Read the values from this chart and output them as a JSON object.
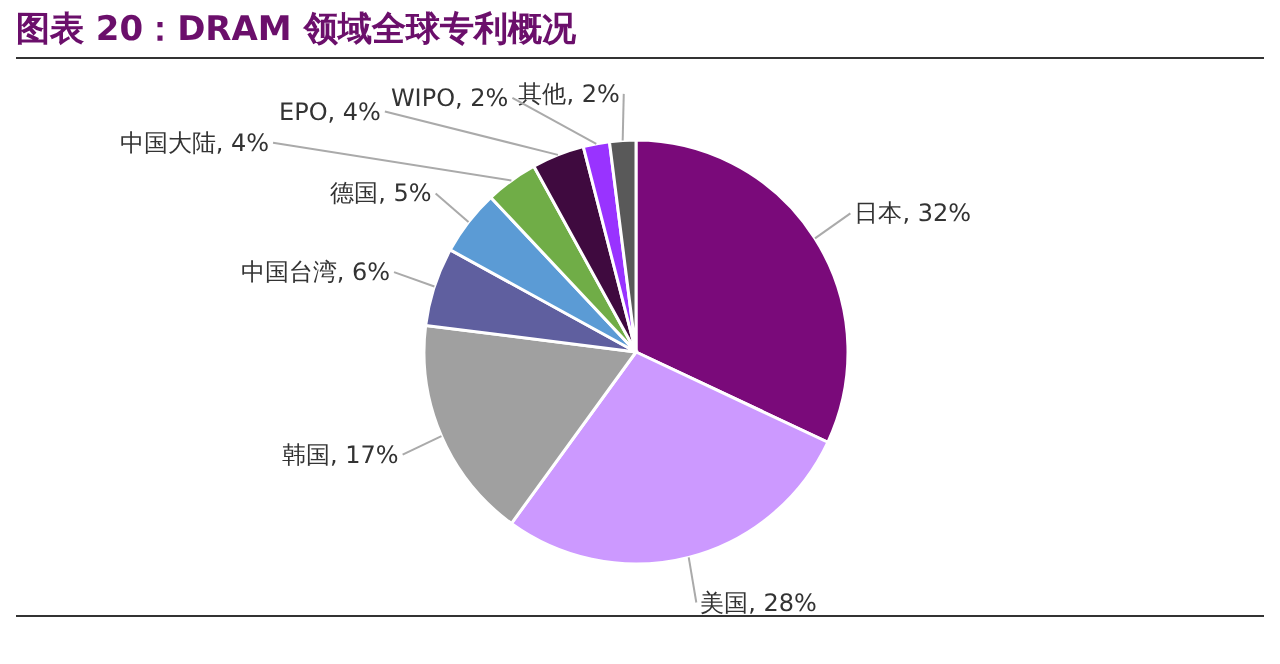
{
  "chart_data": {
    "type": "pie",
    "title": "图表 20：DRAM 领域全球专利概况",
    "categories": [
      "日本",
      "美国",
      "韩国",
      "中国台湾",
      "德国",
      "中国大陆",
      "EPO",
      "WIPO",
      "其他"
    ],
    "values": [
      32,
      28,
      17,
      6,
      5,
      4,
      4,
      2,
      2
    ],
    "value_labels": [
      "32%",
      "28%",
      "17%",
      "6%",
      "5%",
      "4%",
      "4%",
      "2%",
      "2%"
    ],
    "colors": [
      "#7a0a7a",
      "#cc99ff",
      "#a0a0a0",
      "#5f5f9f",
      "#5b9bd5",
      "#70ad47",
      "#3f0a3f",
      "#9933ff",
      "#595959"
    ]
  }
}
